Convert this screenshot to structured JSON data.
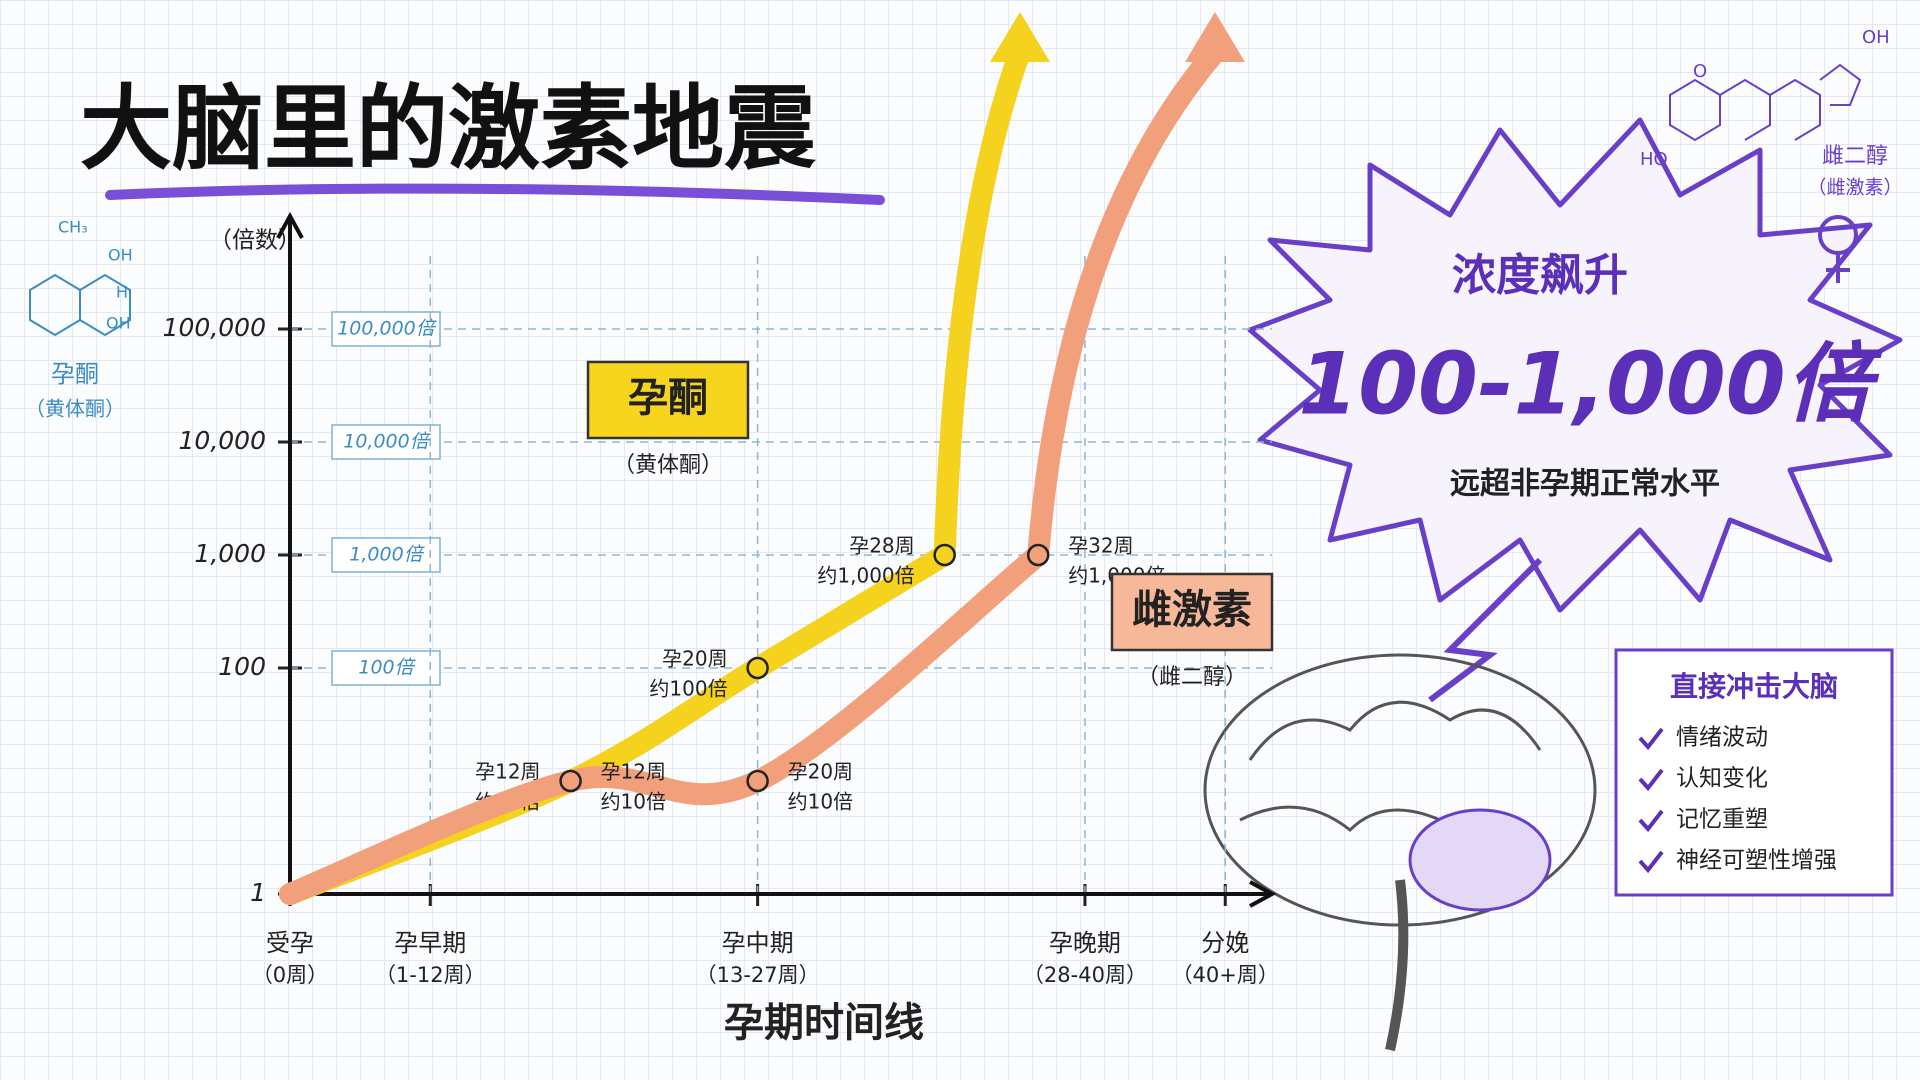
{
  "title": "大脑里的激素地震",
  "chart_data": {
    "type": "line",
    "log_scale": true,
    "grid": true,
    "y_label": "（倍数）",
    "x_label": "孕期时间线",
    "xlim": [
      0,
      42
    ],
    "ylim": [
      1,
      1000000
    ],
    "xticks": [
      {
        "value": 0,
        "label": "受孕"
      },
      {
        "value": 6,
        "label": "孕早期"
      },
      {
        "value": 20,
        "label": "孕中期"
      },
      {
        "value": 34,
        "label": "孕晚期"
      },
      {
        "value": 40,
        "label": "分娩"
      }
    ],
    "xtick_sublabels": [
      "（0周）",
      "（1-12周）",
      "（13-27周）",
      "（28-40周）",
      "（40+周）"
    ],
    "yticks": [
      1,
      100,
      {
        "value": 1000,
        "label": "1,000"
      },
      {
        "value": 10000,
        "label": "10,000"
      },
      {
        "value": 100000,
        "label": "100,000"
      }
    ],
    "ytick_notes": [
      null,
      "100倍",
      "1,000倍",
      "10,000倍",
      "100,000倍"
    ],
    "series": [
      {
        "name": "孕酮",
        "subname": "（黄体酮）",
        "color": "#f5d21e",
        "x": [
          0,
          12,
          20,
          28
        ],
        "values": [
          1,
          10,
          100,
          1000
        ],
        "point_labels": [
          null,
          "孕12周",
          "孕20周",
          "孕28周"
        ],
        "value_labels": [
          null,
          "约10倍",
          "约100倍",
          "约1,000倍"
        ]
      },
      {
        "name": "雌激素",
        "subname": "（雌二醇）",
        "color": "#f2a07b",
        "x": [
          0,
          12,
          20,
          32
        ],
        "values": [
          1,
          10,
          10,
          1000
        ],
        "point_labels": [
          null,
          "孕12周",
          "孕20周",
          "孕32周"
        ],
        "value_labels": [
          null,
          "约10倍",
          "约10倍",
          "约1,000倍"
        ]
      }
    ]
  },
  "callout": {
    "heading": "浓度飙升",
    "figure": "100-1,000倍",
    "note": "远超非孕期正常水平"
  },
  "brain_box": {
    "heading": "直接冲击大脑",
    "items": [
      "情绪波动",
      "认知变化",
      "记忆重塑",
      "神经可塑性增强"
    ]
  },
  "molecules": [
    {
      "name": "孕酮",
      "subname": "（黄体酮）",
      "atoms": [
        "CH₃",
        "OH",
        "H",
        "OH"
      ]
    },
    {
      "name": "雌二醇",
      "subname": "（雌激素）",
      "atoms": [
        "O",
        "OH",
        "HO"
      ]
    }
  ]
}
